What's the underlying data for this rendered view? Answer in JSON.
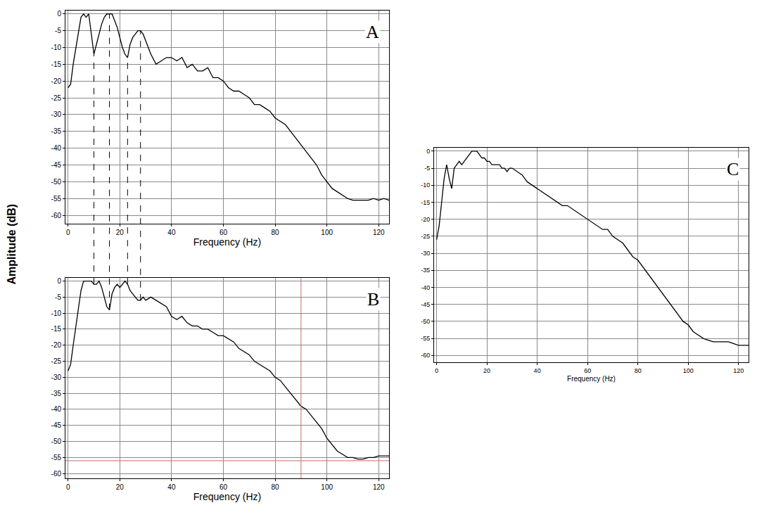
{
  "chart_data": [
    {
      "type": "line",
      "title": "A",
      "xlabel": "Frequency (Hz)",
      "ylabel": "Amplitude (dB)",
      "color": "#000000",
      "grid": true,
      "xlim": [
        -1,
        124
      ],
      "ylim": [
        -62.5,
        1
      ],
      "xticks": [
        0,
        20,
        40,
        60,
        80,
        100,
        120
      ],
      "yticks": [
        0,
        -5,
        -10,
        -15,
        -20,
        -25,
        -30,
        -35,
        -40,
        -45,
        -50,
        -55,
        -60
      ],
      "x": [
        0,
        1,
        2,
        3,
        4,
        5,
        6,
        7,
        8,
        9,
        10,
        11,
        12,
        13,
        14,
        15,
        16,
        17,
        18,
        19,
        20,
        21,
        22,
        23,
        24,
        25,
        26,
        27,
        28,
        29,
        30,
        32,
        34,
        36,
        38,
        40,
        42,
        44,
        46,
        48,
        50,
        52,
        54,
        56,
        58,
        60,
        62,
        64,
        66,
        68,
        70,
        72,
        74,
        76,
        78,
        80,
        82,
        84,
        86,
        88,
        90,
        92,
        94,
        96,
        98,
        100,
        102,
        104,
        106,
        108,
        110,
        112,
        114,
        116,
        118,
        120,
        122,
        124
      ],
      "values": [
        -22,
        -21,
        -15,
        -10,
        -5,
        -1,
        0,
        -1,
        0,
        -6,
        -12,
        -9,
        -6,
        -3,
        -1,
        0,
        0,
        0,
        -2,
        -4,
        -7,
        -10,
        -12,
        -13,
        -9,
        -7,
        -6,
        -5,
        -5,
        -6,
        -8,
        -12,
        -15,
        -14,
        -13,
        -13,
        -14,
        -13,
        -16,
        -15,
        -17,
        -17,
        -16,
        -19,
        -19,
        -20,
        -22,
        -23,
        -23,
        -24,
        -25,
        -27,
        -27,
        -28,
        -29,
        -31,
        -32,
        -33,
        -35,
        -37,
        -39,
        -41,
        -43,
        -45,
        -48,
        -50,
        -52,
        -53,
        -54,
        -55,
        -55.5,
        -55.5,
        -55.5,
        -55.5,
        -55,
        -55.5,
        -55,
        -55.5
      ],
      "reference_lines": {
        "x": [
          10,
          16,
          23,
          28
        ],
        "line_style": "dashed",
        "color": "#000000"
      }
    },
    {
      "type": "line",
      "title": "B",
      "xlabel": "Frequency (Hz)",
      "color": "#000000",
      "grid": true,
      "xlim": [
        -1,
        124
      ],
      "ylim": [
        -61.5,
        1
      ],
      "xticks": [
        0,
        20,
        40,
        60,
        80,
        100,
        120
      ],
      "yticks": [
        0,
        -5,
        -10,
        -15,
        -20,
        -25,
        -30,
        -35,
        -40,
        -45,
        -50,
        -55,
        -60
      ],
      "x": [
        0,
        1,
        2,
        3,
        4,
        5,
        6,
        7,
        8,
        9,
        10,
        11,
        12,
        13,
        14,
        15,
        16,
        17,
        18,
        19,
        20,
        21,
        22,
        23,
        24,
        25,
        26,
        27,
        28,
        29,
        30,
        32,
        34,
        36,
        38,
        40,
        42,
        44,
        46,
        48,
        50,
        52,
        54,
        56,
        58,
        60,
        62,
        64,
        66,
        68,
        70,
        72,
        74,
        76,
        78,
        80,
        82,
        84,
        86,
        88,
        90,
        92,
        94,
        96,
        98,
        100,
        102,
        104,
        106,
        108,
        110,
        112,
        114,
        116,
        118,
        120,
        122,
        124
      ],
      "values": [
        -28,
        -26,
        -20,
        -14,
        -8,
        -3,
        0,
        0,
        0,
        0,
        -1,
        -1,
        0,
        -2,
        -5,
        -8,
        -9,
        -4,
        -2,
        -1,
        -2,
        -1,
        0,
        -1,
        -3,
        -4,
        -5,
        -6,
        -6,
        -5,
        -6,
        -5,
        -6,
        -7,
        -8,
        -11,
        -12,
        -11,
        -13,
        -14,
        -14,
        -15,
        -15,
        -16,
        -17,
        -17,
        -18,
        -19,
        -21,
        -22,
        -23,
        -25,
        -26,
        -27,
        -28,
        -30,
        -31,
        -33,
        -35,
        -37,
        -39,
        -40,
        -42,
        -44,
        -46,
        -49,
        -51,
        -53,
        -54,
        -55,
        -55,
        -55.5,
        -55.5,
        -55,
        -55,
        -54.5,
        -54.5,
        -54.5
      ],
      "cursor": {
        "x": 90,
        "y": -56,
        "color": "#c07070"
      }
    },
    {
      "type": "line",
      "title": "C",
      "xlabel": "Frequency (Hz)",
      "color": "#000000",
      "grid": true,
      "xlim": [
        -1,
        124
      ],
      "ylim": [
        -62,
        1
      ],
      "xticks": [
        0,
        20,
        40,
        60,
        80,
        100,
        120
      ],
      "yticks": [
        0,
        -5,
        -10,
        -15,
        -20,
        -25,
        -30,
        -35,
        -40,
        -45,
        -50,
        -55,
        -60
      ],
      "x": [
        0,
        1,
        2,
        3,
        4,
        5,
        6,
        7,
        8,
        9,
        10,
        11,
        12,
        13,
        14,
        15,
        16,
        17,
        18,
        19,
        20,
        21,
        22,
        23,
        24,
        25,
        26,
        27,
        28,
        29,
        30,
        32,
        34,
        36,
        38,
        40,
        42,
        44,
        46,
        48,
        50,
        52,
        54,
        56,
        58,
        60,
        62,
        64,
        66,
        68,
        70,
        72,
        74,
        76,
        78,
        80,
        82,
        84,
        86,
        88,
        90,
        92,
        94,
        96,
        98,
        100,
        102,
        104,
        106,
        108,
        110,
        112,
        114,
        116,
        118,
        120,
        122,
        124
      ],
      "values": [
        -26,
        -22,
        -15,
        -8,
        -4,
        -8,
        -11,
        -5,
        -4,
        -3,
        -4,
        -3,
        -2,
        -1,
        0,
        0,
        0,
        -1,
        -2,
        -2,
        -3,
        -3,
        -4,
        -4,
        -4,
        -4,
        -5,
        -5,
        -6,
        -5,
        -5,
        -6,
        -7,
        -9,
        -10,
        -11,
        -12,
        -13,
        -14,
        -15,
        -16,
        -16,
        -17,
        -18,
        -19,
        -20,
        -21,
        -22,
        -23,
        -23,
        -25,
        -26,
        -27,
        -29,
        -31,
        -32,
        -34,
        -36,
        -38,
        -40,
        -42,
        -44,
        -46,
        -48,
        -50,
        -51,
        -53,
        -54,
        -55,
        -55.5,
        -56,
        -56,
        -56,
        -56,
        -56.5,
        -57,
        -57,
        -57
      ]
    }
  ]
}
